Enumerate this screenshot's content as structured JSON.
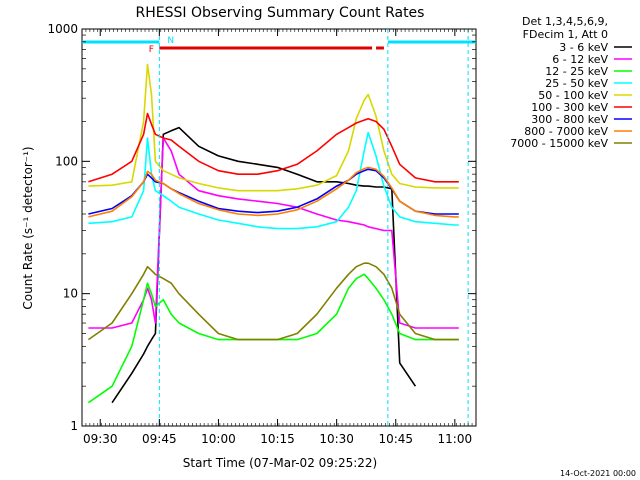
{
  "chart_data": {
    "type": "line",
    "title": "RHESSI Observing Summary Count Rates",
    "xlabel": "Start Time (07-Mar-02 09:25:22)",
    "ylabel": "Count Rate (s⁻¹ detector⁻¹)",
    "y_scale": "log",
    "ylim": [
      1,
      1000
    ],
    "xlim_minutes_after_0925": [
      0,
      100
    ],
    "x_tick_labels": [
      "09:30",
      "09:45",
      "10:00",
      "10:15",
      "10:30",
      "10:45",
      "11:00"
    ],
    "y_tick_labels": [
      "1",
      "10",
      "100",
      "1000"
    ],
    "legend_header": [
      "Det 1,3,4,5,6,9,",
      "FDecim 1, Att 0"
    ],
    "legend_position": "right",
    "footer_date": "14-Oct-2021 00:00",
    "flags": {
      "night_label": "N",
      "flare_label": "F",
      "night_color": "#00e0ff",
      "flare_color": "#e00000"
    },
    "x": [
      "09:27",
      "09:33",
      "09:38",
      "09:41",
      "09:42",
      "09:43",
      "09:44",
      "09:46",
      "09:48",
      "09:50",
      "09:55",
      "10:00",
      "10:05",
      "10:10",
      "10:15",
      "10:20",
      "10:25",
      "10:30",
      "10:33",
      "10:35",
      "10:37",
      "10:38",
      "10:40",
      "10:42",
      "10:44",
      "10:46",
      "10:50",
      "10:55",
      "11:00",
      "11:01"
    ],
    "series": [
      {
        "name": "3 - 6 keV",
        "color": "#000000",
        "values": [
          null,
          1.5,
          2.5,
          3.5,
          4,
          4.5,
          5,
          160,
          170,
          180,
          130,
          110,
          100,
          95,
          90,
          80,
          70,
          70,
          68,
          66,
          65,
          65,
          64,
          64,
          62,
          3,
          2,
          null,
          null,
          null
        ]
      },
      {
        "name": "6 - 12 keV",
        "color": "#ff00ff",
        "values": [
          5.5,
          5.5,
          6,
          9,
          11,
          9,
          6,
          150,
          120,
          80,
          60,
          55,
          52,
          50,
          48,
          45,
          40,
          36,
          35,
          34,
          33,
          32,
          31,
          30,
          30,
          6,
          5.5,
          5.5,
          5.5,
          5.5
        ]
      },
      {
        "name": "12 - 25 keV",
        "color": "#00ff00",
        "values": [
          1.5,
          2,
          4,
          9,
          12,
          10,
          8,
          9,
          7,
          6,
          5,
          4.5,
          4.5,
          4.5,
          4.5,
          4.5,
          5,
          7,
          11,
          13,
          14,
          13,
          11,
          9,
          7,
          5,
          4.5,
          4.5,
          4.5,
          4.5
        ]
      },
      {
        "name": "25 - 50 keV",
        "color": "#00ffff",
        "values": [
          34,
          35,
          38,
          60,
          150,
          80,
          60,
          55,
          50,
          45,
          40,
          36,
          34,
          32,
          31,
          31,
          32,
          35,
          45,
          60,
          120,
          165,
          110,
          65,
          45,
          38,
          35,
          34,
          33,
          33
        ]
      },
      {
        "name": "50 - 100 keV",
        "color": "#d8d800",
        "values": [
          65,
          66,
          70,
          200,
          540,
          320,
          100,
          85,
          80,
          75,
          68,
          63,
          60,
          60,
          60,
          62,
          66,
          78,
          120,
          210,
          290,
          320,
          220,
          120,
          80,
          68,
          64,
          63,
          63,
          63
        ]
      },
      {
        "name": "100 - 300 keV",
        "color": "#ff0000",
        "values": [
          70,
          80,
          100,
          160,
          230,
          190,
          160,
          150,
          145,
          130,
          100,
          85,
          80,
          80,
          85,
          95,
          120,
          160,
          180,
          195,
          205,
          210,
          200,
          175,
          130,
          95,
          75,
          70,
          70,
          70
        ]
      },
      {
        "name": "300 - 800 keV",
        "color": "#0000ff",
        "values": [
          40,
          44,
          55,
          70,
          80,
          75,
          70,
          68,
          62,
          58,
          50,
          44,
          42,
          41,
          42,
          45,
          52,
          65,
          72,
          80,
          85,
          87,
          85,
          75,
          62,
          50,
          42,
          40,
          40,
          40
        ]
      },
      {
        "name": "800 - 7000 keV",
        "color": "#ff8000",
        "values": [
          38,
          42,
          54,
          70,
          84,
          80,
          72,
          68,
          62,
          57,
          48,
          43,
          40,
          39,
          40,
          43,
          50,
          62,
          72,
          82,
          88,
          90,
          87,
          77,
          63,
          50,
          42,
          39,
          38,
          38
        ]
      },
      {
        "name": "7000 - 15000 keV",
        "color": "#808000",
        "values": [
          4.5,
          6,
          10,
          14,
          16,
          15,
          14,
          13,
          12,
          10,
          7,
          5,
          4.5,
          4.5,
          4.5,
          5,
          7,
          11,
          14,
          16,
          17,
          17,
          16,
          14,
          11,
          7,
          5,
          4.5,
          4.5,
          4.5
        ]
      }
    ]
  }
}
